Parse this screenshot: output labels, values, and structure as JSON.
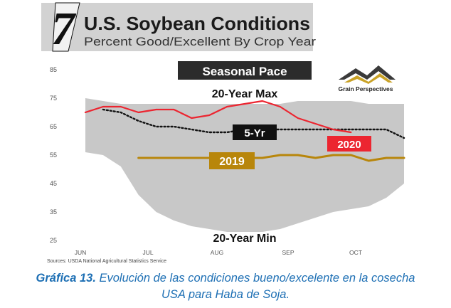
{
  "header": {
    "badge": "7",
    "title": "U.S. Soybean Conditions",
    "subtitle": "Percent Good/Excellent By Crop Year"
  },
  "banner": "Seasonal Pace",
  "logo": {
    "text": "Grain Perspectives",
    "icon": "wheat-field-logo-icon"
  },
  "source": "Sources: USDA National Agricultural Statistics Service",
  "caption": {
    "label": "Gráfica 13.",
    "line1": " Evolución de las condiciones bueno/excelente en la cosecha",
    "line2": "USA para Haba de Soja."
  },
  "colors": {
    "range_band": "#c8c8c8",
    "max_line": "#ec2530",
    "max_label_bg": "#ec2530",
    "avg_line": "#111111",
    "y2019_line": "#b8860b",
    "y2019_label_bg": "#b8860b",
    "header_gray": "#d2d2d2"
  },
  "chart_data": {
    "type": "line",
    "title": "Seasonal Pace",
    "xlabel": "",
    "ylabel": "",
    "ylim": [
      25,
      85
    ],
    "yticks": [
      25,
      35,
      45,
      55,
      65,
      75,
      85
    ],
    "xticks": [
      "Jun",
      "Jul",
      "Aug",
      "Sep",
      "Oct"
    ],
    "x": [
      0,
      1,
      2,
      3,
      4,
      5,
      6,
      7,
      8,
      9,
      10,
      11,
      12,
      13,
      14,
      15,
      16,
      17,
      18
    ],
    "grid": false,
    "legend": "none",
    "band": {
      "upper_label": "20-Year Max",
      "lower_label": "20-Year Min",
      "upper": [
        75,
        74,
        73,
        73,
        73,
        73,
        73,
        73,
        73,
        73,
        73,
        73,
        74,
        74,
        74,
        74,
        73,
        73,
        73
      ],
      "lower": [
        56,
        55,
        51,
        41,
        35,
        32,
        30,
        29,
        28,
        28,
        28,
        29,
        31,
        33,
        35,
        36,
        37,
        40,
        45
      ]
    },
    "series": [
      {
        "name": "2020",
        "values": [
          70,
          72,
          72,
          70,
          71,
          71,
          68,
          69,
          72,
          73,
          74,
          72,
          68,
          66,
          64,
          63,
          null,
          null,
          null
        ]
      },
      {
        "name": "5-Yr",
        "values": [
          null,
          71,
          70,
          67,
          65,
          65,
          64,
          63,
          63,
          64,
          64,
          64,
          64,
          64,
          64,
          64,
          64,
          64,
          61
        ]
      },
      {
        "name": "2019",
        "values": [
          null,
          null,
          null,
          54,
          54,
          54,
          54,
          54,
          54,
          54,
          54,
          55,
          55,
          54,
          55,
          55,
          53,
          54,
          54
        ]
      }
    ]
  }
}
